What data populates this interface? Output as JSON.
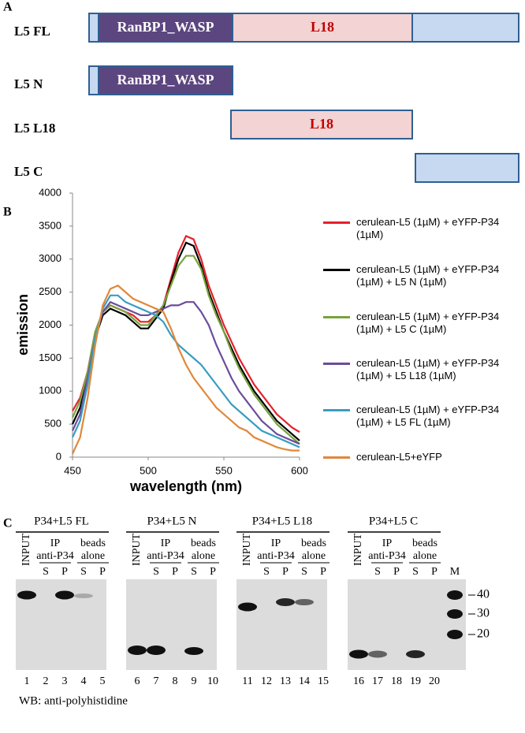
{
  "panel_a": {
    "label": "A",
    "constructs": [
      {
        "name": "L5 FL",
        "domains": [
          "RanBP1_WASP",
          "L18"
        ]
      },
      {
        "name": "L5 N",
        "domains": [
          "RanBP1_WASP"
        ]
      },
      {
        "name": "L5 L18",
        "domains": [
          "L18"
        ]
      },
      {
        "name": "L5 C"
      }
    ]
  },
  "chart_data": {
    "type": "line",
    "panel_label": "B",
    "ylabel": "emission",
    "xlabel": "wavelength (nm)",
    "x": [
      450,
      455,
      460,
      465,
      470,
      475,
      480,
      485,
      490,
      495,
      500,
      505,
      510,
      515,
      520,
      525,
      530,
      535,
      540,
      545,
      550,
      555,
      560,
      565,
      570,
      575,
      580,
      585,
      590,
      595,
      600
    ],
    "series": [
      {
        "name": "cerulean-L5 (1µM) + eYFP-P34 (1µM)",
        "color": "#e5212b",
        "values": [
          700,
          900,
          1300,
          1900,
          2200,
          2300,
          2250,
          2200,
          2150,
          2050,
          2050,
          2150,
          2300,
          2700,
          3100,
          3350,
          3300,
          3000,
          2600,
          2300,
          2000,
          1750,
          1500,
          1300,
          1100,
          950,
          800,
          650,
          550,
          450,
          380
        ]
      },
      {
        "name": "cerulean-L5 (1µM) + eYFP-P34 (1µM) + L5 N (1µM)",
        "color": "#000000",
        "values": [
          500,
          750,
          1200,
          1800,
          2150,
          2250,
          2200,
          2150,
          2050,
          1950,
          1950,
          2100,
          2250,
          2650,
          3000,
          3250,
          3200,
          2900,
          2500,
          2200,
          1900,
          1650,
          1400,
          1200,
          1000,
          850,
          700,
          550,
          450,
          350,
          250
        ]
      },
      {
        "name": "cerulean-L5 (1µM) + eYFP-P34 (1µM) + L5  C (1µM)",
        "color": "#78a33d",
        "values": [
          600,
          850,
          1300,
          1900,
          2200,
          2300,
          2250,
          2200,
          2100,
          2000,
          2000,
          2150,
          2300,
          2600,
          2900,
          3050,
          3050,
          2850,
          2450,
          2150,
          1900,
          1600,
          1350,
          1150,
          950,
          800,
          650,
          500,
          400,
          300,
          200
        ]
      },
      {
        "name": "cerulean-L5 (1µM) + eYFP-P34 (1µM) +  L5 L18 (1µM)",
        "color": "#6b4c9a",
        "values": [
          400,
          650,
          1200,
          1800,
          2200,
          2350,
          2300,
          2250,
          2200,
          2150,
          2150,
          2200,
          2250,
          2300,
          2300,
          2350,
          2350,
          2200,
          2000,
          1700,
          1450,
          1200,
          1000,
          850,
          700,
          550,
          450,
          350,
          300,
          250,
          200
        ]
      },
      {
        "name": "cerulean-L5 (1µM) + eYFP-P34 (1µM) + L5 FL (1µM)",
        "color": "#3a9dc2",
        "values": [
          300,
          550,
          1100,
          1800,
          2250,
          2450,
          2450,
          2350,
          2300,
          2250,
          2200,
          2150,
          2050,
          1850,
          1700,
          1600,
          1500,
          1400,
          1250,
          1100,
          950,
          800,
          700,
          600,
          500,
          400,
          350,
          300,
          250,
          200,
          150
        ]
      },
      {
        "name": "cerulean-L5+eYFP",
        "color": "#e0883a",
        "values": [
          50,
          300,
          900,
          1700,
          2300,
          2550,
          2600,
          2500,
          2400,
          2350,
          2300,
          2250,
          2200,
          1950,
          1650,
          1400,
          1200,
          1050,
          900,
          750,
          650,
          550,
          450,
          400,
          300,
          250,
          200,
          150,
          120,
          100,
          100
        ]
      }
    ],
    "xlim": [
      450,
      600
    ],
    "xticks": [
      450,
      500,
      550,
      600
    ],
    "ylim": [
      0,
      4000
    ],
    "yticks": [
      0,
      500,
      1000,
      1500,
      2000,
      2500,
      3000,
      3500,
      4000
    ]
  },
  "panel_c": {
    "label": "C",
    "column_labels": {
      "input": "INPUT",
      "ip": [
        "IP",
        "anti-P34"
      ],
      "beads": [
        "beads",
        "alone"
      ],
      "fractions": [
        "S",
        "P",
        "S",
        "P"
      ]
    },
    "blots": [
      {
        "title": "P34+L5 FL",
        "lanes": [
          1,
          2,
          3,
          4,
          5
        ]
      },
      {
        "title": "P34+L5 N",
        "lanes": [
          6,
          7,
          8,
          9,
          10
        ]
      },
      {
        "title": "P34+L5 L18",
        "lanes": [
          11,
          12,
          13,
          14,
          15
        ]
      },
      {
        "title": "P34+L5 C",
        "lanes": [
          16,
          17,
          18,
          19,
          20
        ],
        "marker": "M",
        "marker_sizes": [
          40,
          30,
          20
        ]
      }
    ],
    "footer": "WB: anti-polyhistidine"
  }
}
